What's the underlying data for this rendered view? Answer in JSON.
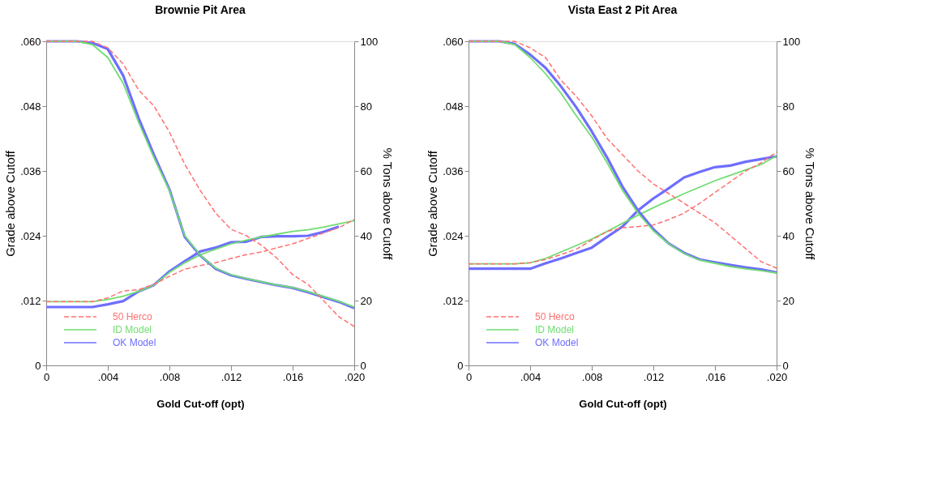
{
  "chart_data": [
    {
      "type": "line",
      "title": "Brownie Pit Area",
      "xlabel": "Gold Cut-off (opt)",
      "ylabel": "Grade above Cutoff",
      "y2label": "% Tons above Cutoff",
      "legend": "bottom left",
      "x": [
        0,
        0.001,
        0.002,
        0.003,
        0.004,
        0.005,
        0.006,
        0.007,
        0.008,
        0.009,
        0.01,
        0.011,
        0.012,
        0.013,
        0.014,
        0.015,
        0.016,
        0.017,
        0.018,
        0.019,
        0.02
      ],
      "xlim": [
        0,
        0.02
      ],
      "xticks": [
        {
          "value": 0,
          "label": "0"
        },
        {
          "value": 0.004,
          "label": ".004"
        },
        {
          "value": 0.008,
          "label": ".008"
        },
        {
          "value": 0.012,
          "label": ".012"
        },
        {
          "value": 0.016,
          "label": ".016"
        },
        {
          "value": 0.02,
          "label": ".020"
        }
      ],
      "ylim": [
        0,
        0.06
      ],
      "yticks": [
        {
          "value": 0,
          "label": "0"
        },
        {
          "value": 0.012,
          "label": ".012"
        },
        {
          "value": 0.024,
          "label": ".024"
        },
        {
          "value": 0.036,
          "label": ".036"
        },
        {
          "value": 0.048,
          "label": ".048"
        },
        {
          "value": 0.06,
          "label": ".060"
        }
      ],
      "y2lim": [
        0,
        100
      ],
      "y2ticks": [
        0,
        20,
        40,
        60,
        80,
        100
      ],
      "series": [
        {
          "name": "50 Herco",
          "color": "#ff7070",
          "line_style": "dashed",
          "values": [
            0.0118,
            0.0118,
            0.0118,
            0.0118,
            0.0125,
            0.0138,
            0.014,
            0.015,
            0.0165,
            0.0178,
            0.0185,
            0.019,
            0.0198,
            0.0205,
            0.021,
            0.0218,
            0.0225,
            0.0235,
            0.0245,
            0.0255,
            0.027
          ]
        },
        {
          "name": "ID Model",
          "color": "#70dd70",
          "line_style": "solid",
          "values": [
            0.0118,
            0.0118,
            0.0118,
            0.0118,
            0.0122,
            0.0128,
            0.0137,
            0.0149,
            0.0172,
            0.019,
            0.0205,
            0.0215,
            0.0225,
            0.0232,
            0.0238,
            0.0243,
            0.0248,
            0.0251,
            0.0256,
            0.0262,
            0.0268
          ]
        },
        {
          "name": "OK Model",
          "color": "#6e6eff",
          "line_style": "solid",
          "values": [
            0.0108,
            0.0108,
            0.0108,
            0.0108,
            0.0113,
            0.0119,
            0.0137,
            0.0149,
            0.0174,
            0.0193,
            0.0211,
            0.0218,
            0.0228,
            0.0229,
            0.0238,
            0.0239,
            0.0239,
            0.024,
            0.0247,
            0.0257,
            null
          ]
        },
        {
          "color": "#ff7070",
          "line_style": "dashed",
          "axis": "y2",
          "values": [
            100,
            100,
            100,
            100,
            98,
            93,
            85,
            80,
            72,
            62,
            54,
            47,
            42,
            40,
            37,
            33,
            28,
            25,
            20,
            15,
            12
          ]
        },
        {
          "color": "#70dd70",
          "line_style": "solid",
          "axis": "y2",
          "values": [
            100,
            100,
            100,
            99,
            95,
            87,
            75,
            64,
            54,
            40,
            34,
            30,
            28,
            26.8,
            25.8,
            24.8,
            24,
            22.8,
            21.3,
            19.8,
            18
          ]
        },
        {
          "color": "#6e6eff",
          "line_style": "solid",
          "axis": "y2",
          "values": [
            100,
            100,
            100,
            99.5,
            97.6,
            89.4,
            76.3,
            64.9,
            54.3,
            39.6,
            33.9,
            29.8,
            27.8,
            26.7,
            25.7,
            24.7,
            23.9,
            22.6,
            21.1,
            19.6,
            17.7
          ]
        }
      ]
    },
    {
      "type": "line",
      "title": "Vista East 2 Pit Area",
      "xlabel": "Gold Cut-off (opt)",
      "ylabel": "Grade above Cutoff",
      "y2label": "% Tons above Cutoff",
      "legend": "bottom left",
      "x": [
        0,
        0.001,
        0.002,
        0.003,
        0.004,
        0.005,
        0.006,
        0.007,
        0.008,
        0.009,
        0.01,
        0.011,
        0.012,
        0.013,
        0.014,
        0.015,
        0.016,
        0.017,
        0.018,
        0.019,
        0.02
      ],
      "xlim": [
        0,
        0.02
      ],
      "xticks": [
        {
          "value": 0,
          "label": "0"
        },
        {
          "value": 0.004,
          "label": ".004"
        },
        {
          "value": 0.008,
          "label": ".008"
        },
        {
          "value": 0.012,
          "label": ".012"
        },
        {
          "value": 0.016,
          "label": ".016"
        },
        {
          "value": 0.02,
          "label": ".020"
        }
      ],
      "ylim": [
        0,
        0.06
      ],
      "yticks": [
        {
          "value": 0,
          "label": "0"
        },
        {
          "value": 0.012,
          "label": ".012"
        },
        {
          "value": 0.024,
          "label": ".024"
        },
        {
          "value": 0.036,
          "label": ".036"
        },
        {
          "value": 0.048,
          "label": ".048"
        },
        {
          "value": 0.06,
          "label": ".060"
        }
      ],
      "y2lim": [
        0,
        100
      ],
      "y2ticks": [
        0,
        20,
        40,
        60,
        80,
        100
      ],
      "series": [
        {
          "name": "50 Herco",
          "color": "#ff7070",
          "line_style": "dashed",
          "values": [
            0.0188,
            0.0188,
            0.0188,
            0.0188,
            0.019,
            0.0196,
            0.0205,
            0.0215,
            0.0232,
            0.0248,
            0.0255,
            0.0257,
            0.026,
            0.027,
            0.0282,
            0.03,
            0.032,
            0.034,
            0.036,
            0.0375,
            0.0395
          ]
        },
        {
          "name": "ID Model",
          "color": "#70dd70",
          "line_style": "solid",
          "values": [
            0.0188,
            0.0188,
            0.0188,
            0.0188,
            0.019,
            0.0198,
            0.021,
            0.0222,
            0.0234,
            0.0248,
            0.0263,
            0.0278,
            0.0292,
            0.0305,
            0.0318,
            0.033,
            0.0342,
            0.0352,
            0.0362,
            0.0372,
            0.0388
          ]
        },
        {
          "name": "OK Model",
          "color": "#6e6eff",
          "line_style": "solid",
          "values": [
            0.0179,
            0.0179,
            0.0179,
            0.0179,
            0.0179,
            0.0189,
            0.0198,
            0.0208,
            0.0218,
            0.0238,
            0.0257,
            0.0287,
            0.0309,
            0.0328,
            0.0348,
            0.0358,
            0.0367,
            0.037,
            0.0377,
            0.0382,
            0.0387
          ]
        },
        {
          "color": "#ff7070",
          "line_style": "dashed",
          "axis": "y2",
          "values": [
            100,
            100,
            100,
            100,
            98,
            95,
            88,
            83,
            77,
            70,
            65,
            60,
            56,
            53,
            50,
            47,
            44,
            40,
            36,
            32,
            30
          ]
        },
        {
          "color": "#70dd70",
          "line_style": "solid",
          "axis": "y2",
          "values": [
            100,
            100,
            100,
            99,
            95,
            90,
            84,
            77,
            70.5,
            62.5,
            54,
            47,
            41.5,
            37.5,
            34.5,
            32.5,
            31.5,
            30.5,
            29.8,
            29.2,
            28.5
          ]
        },
        {
          "color": "#6e6eff",
          "line_style": "solid",
          "axis": "y2",
          "values": [
            100,
            100,
            100,
            99.2,
            95.9,
            91.8,
            86.1,
            79.6,
            72.2,
            64.1,
            55.1,
            47.8,
            42,
            37.6,
            34.7,
            32.7,
            31.8,
            31,
            30.2,
            29.6,
            28.7
          ]
        }
      ]
    }
  ]
}
